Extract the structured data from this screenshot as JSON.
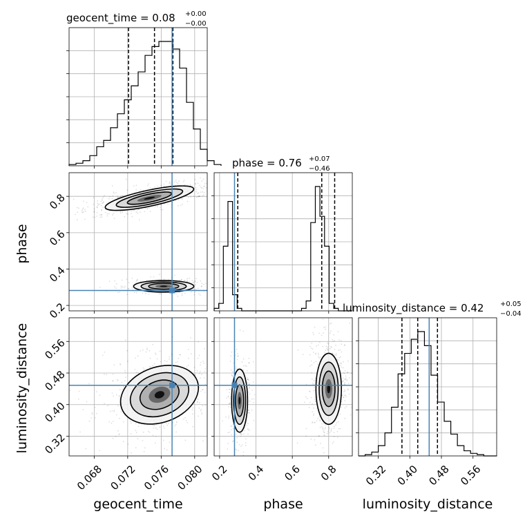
{
  "chart_data": {
    "type": "corner",
    "parameters": [
      "geocent_time",
      "phase",
      "luminosity_distance"
    ],
    "truth_color": "#4682b4",
    "titles": [
      {
        "name": "geocent_time",
        "median": "0.08",
        "upper": "+0.00",
        "lower": "−0.00"
      },
      {
        "name": "phase",
        "median": "0.76",
        "upper": "+0.07",
        "lower": "−0.46"
      },
      {
        "name": "luminosity_distance",
        "median": "0.42",
        "upper": "+0.05",
        "lower": "−0.04"
      }
    ],
    "truths": {
      "geocent_time": 0.0773,
      "phase": 0.282,
      "luminosity_distance": 0.449
    },
    "ranges": {
      "geocent_time": [
        0.065,
        0.0815
      ],
      "phase": [
        0.17,
        0.93
      ],
      "luminosity_distance": [
        0.27,
        0.62
      ]
    },
    "ticks": {
      "geocent_time": [
        {
          "v": 0.068,
          "t": "0.068"
        },
        {
          "v": 0.072,
          "t": "0.072"
        },
        {
          "v": 0.076,
          "t": "0.076"
        },
        {
          "v": 0.08,
          "t": "0.080"
        }
      ],
      "phase": [
        {
          "v": 0.2,
          "t": "0.2"
        },
        {
          "v": 0.4,
          "t": "0.4"
        },
        {
          "v": 0.6,
          "t": "0.6"
        },
        {
          "v": 0.8,
          "t": "0.8"
        }
      ],
      "luminosity_distance": [
        {
          "v": 0.32,
          "t": "0.32"
        },
        {
          "v": 0.4,
          "t": "0.40"
        },
        {
          "v": 0.48,
          "t": "0.48"
        },
        {
          "v": 0.56,
          "t": "0.56"
        }
      ]
    },
    "histograms": {
      "geocent_time": {
        "bin_start": 0.065,
        "bin_width": 0.000825,
        "counts": [
          0.01,
          0.02,
          0.04,
          0.08,
          0.15,
          0.2,
          0.3,
          0.41,
          0.52,
          0.63,
          0.74,
          0.87,
          0.94,
          0.98,
          0.98,
          0.92,
          0.77,
          0.5,
          0.29,
          0.13,
          0.04,
          0.01
        ],
        "quantiles": [
          0.0721,
          0.0752,
          0.0774
        ]
      },
      "phase": {
        "bin_start": 0.17,
        "bin_width": 0.0253,
        "counts": [
          0.02,
          0.06,
          0.52,
          0.88,
          0.13,
          0.02,
          0.0,
          0.0,
          0.0,
          0.0,
          0.0,
          0.0,
          0.0,
          0.0,
          0.0,
          0.0,
          0.0,
          0.0,
          0.0,
          0.02,
          0.08,
          0.71,
          1.0,
          0.76,
          0.52,
          0.06,
          0.02,
          0.0,
          0.0,
          0.0
        ],
        "quantiles": [
          0.3,
          0.762,
          0.833
        ]
      },
      "luminosity_distance": {
        "bin_start": 0.27,
        "bin_width": 0.0167,
        "counts": [
          0.0,
          0.01,
          0.03,
          0.08,
          0.18,
          0.38,
          0.64,
          0.8,
          0.91,
          0.97,
          0.86,
          0.63,
          0.42,
          0.27,
          0.17,
          0.08,
          0.04,
          0.02,
          0.01,
          0.0,
          0.0
        ],
        "quantiles": [
          0.38,
          0.42,
          0.47
        ]
      }
    },
    "joint": [
      {
        "x": "geocent_time",
        "y": "phase",
        "modes": [
          {
            "cx": 0.0746,
            "cy": 0.79,
            "sx": 0.0027,
            "sy": 0.022,
            "rot": -12,
            "w": 1.0
          },
          {
            "cx": 0.0763,
            "cy": 0.305,
            "sx": 0.0018,
            "sy": 0.016,
            "rot": 0,
            "w": 0.45
          }
        ]
      },
      {
        "x": "geocent_time",
        "y": "luminosity_distance",
        "modes": [
          {
            "cx": 0.0758,
            "cy": 0.425,
            "sx": 0.0024,
            "sy": 0.035,
            "rot": -20,
            "w": 1.0
          }
        ]
      },
      {
        "x": "phase",
        "y": "luminosity_distance",
        "modes": [
          {
            "cx": 0.8,
            "cy": 0.44,
            "sx": 0.035,
            "sy": 0.045,
            "rot": 0,
            "w": 1.0
          },
          {
            "cx": 0.31,
            "cy": 0.41,
            "sx": 0.022,
            "sy": 0.04,
            "rot": 0,
            "w": 0.55
          }
        ]
      }
    ]
  }
}
